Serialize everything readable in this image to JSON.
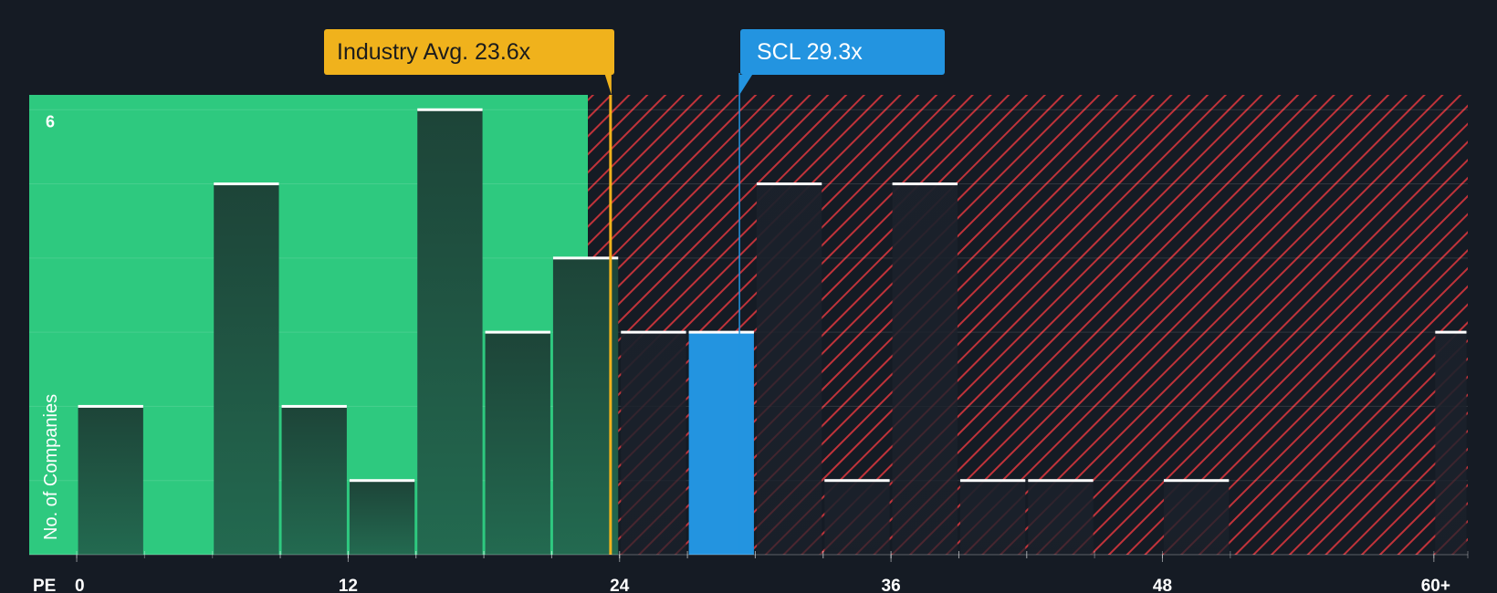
{
  "chart_data": {
    "type": "bar",
    "title": "",
    "xlabel": "PE",
    "ylabel": "No. of Companies",
    "x_tick_labels": [
      "0",
      "12",
      "24",
      "36",
      "48",
      "60+"
    ],
    "x_tick_values": [
      0,
      12,
      24,
      36,
      48,
      60
    ],
    "y_tick_labels": [
      "6"
    ],
    "y_tick_values": [
      6
    ],
    "xlim": [
      -2.1,
      61.5
    ],
    "ylim": [
      0,
      6.2
    ],
    "grid": true,
    "bars": [
      {
        "x0": 0,
        "x1": 3,
        "value": 2,
        "group": "below-average"
      },
      {
        "x0": 6,
        "x1": 9,
        "value": 5,
        "group": "below-average"
      },
      {
        "x0": 9,
        "x1": 12,
        "value": 2,
        "group": "below-average"
      },
      {
        "x0": 12,
        "x1": 15,
        "value": 1,
        "group": "below-average"
      },
      {
        "x0": 15,
        "x1": 18,
        "value": 6,
        "group": "below-average"
      },
      {
        "x0": 18,
        "x1": 21,
        "value": 3,
        "group": "below-average"
      },
      {
        "x0": 21,
        "x1": 24,
        "value": 4,
        "group": "below-average"
      },
      {
        "x0": 24,
        "x1": 27,
        "value": 3,
        "group": "above-average"
      },
      {
        "x0": 27,
        "x1": 30,
        "value": 3,
        "group": "company"
      },
      {
        "x0": 30,
        "x1": 33,
        "value": 5,
        "group": "above-average"
      },
      {
        "x0": 33,
        "x1": 36,
        "value": 1,
        "group": "above-average"
      },
      {
        "x0": 36,
        "x1": 39,
        "value": 5,
        "group": "above-average"
      },
      {
        "x0": 39,
        "x1": 42,
        "value": 1,
        "group": "above-average"
      },
      {
        "x0": 42,
        "x1": 45,
        "value": 1,
        "group": "above-average"
      },
      {
        "x0": 48,
        "x1": 51,
        "value": 1,
        "group": "above-average"
      },
      {
        "x0": 60,
        "x1": 61.5,
        "value": 3,
        "group": "above-average"
      }
    ],
    "industry_average": {
      "label": "Industry Avg. 23.6x",
      "value": 23.6
    },
    "company": {
      "label": "SCL 29.3x",
      "value": 29.3
    },
    "below_average_region_end": 22.6,
    "colors": {
      "background": "#151b24",
      "below_region": "#2ec97f",
      "below_bar": "#1e4a3e",
      "above_hatch": "#c0333a",
      "above_bar": "#1f2530",
      "company_bar": "#2394e0",
      "industry_line": "#f0b21c",
      "company_line": "#2394e0",
      "bar_cap": "#ffffff"
    }
  }
}
